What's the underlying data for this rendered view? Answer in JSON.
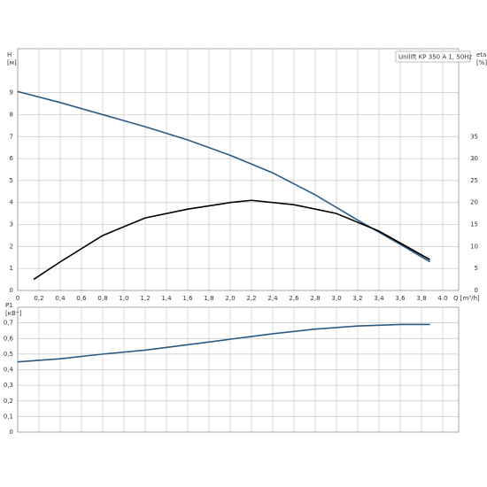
{
  "chart_data": [
    {
      "type": "line",
      "legend_title": "Unilift KP 350 A 1, 50Hz",
      "y_label": "H",
      "y_unit": "[м]",
      "y2_label": "eta",
      "y2_unit": "[%]",
      "x_label": "Q [m³/h]",
      "xlim": [
        0,
        4.15
      ],
      "xticks": [
        0,
        {
          "value": 0.2,
          "label": "0,2"
        },
        {
          "value": 0.4,
          "label": "0,4"
        },
        {
          "value": 0.6,
          "label": "0,6"
        },
        {
          "value": 0.8,
          "label": "0,8"
        },
        {
          "value": 1.0,
          "label": "1,0"
        },
        {
          "value": 1.2,
          "label": "1,2"
        },
        {
          "value": 1.4,
          "label": "1,4"
        },
        {
          "value": 1.6,
          "label": "1,6"
        },
        {
          "value": 1.8,
          "label": "1,8"
        },
        {
          "value": 2.0,
          "label": "2,0"
        },
        {
          "value": 2.2,
          "label": "2,2"
        },
        {
          "value": 2.4,
          "label": "2,4"
        },
        {
          "value": 2.6,
          "label": "2,6"
        },
        {
          "value": 2.8,
          "label": "2,8"
        },
        {
          "value": 3.0,
          "label": "3,0"
        },
        {
          "value": 3.2,
          "label": "3,2"
        },
        {
          "value": 3.4,
          "label": "3,4"
        },
        {
          "value": 3.6,
          "label": "3,6"
        },
        {
          "value": 3.8,
          "label": "3,8"
        },
        {
          "value": 4.0,
          "label": "4.0"
        }
      ],
      "ylim": [
        0,
        11
      ],
      "yticks": [
        0,
        1,
        2,
        3,
        4,
        5,
        6,
        7,
        8,
        9
      ],
      "y2lim": [
        0,
        55
      ],
      "y2ticks": [
        0,
        5,
        10,
        15,
        20,
        25,
        30,
        35
      ],
      "grid": true,
      "series": [
        {
          "name": "H",
          "color": "#2a5b86",
          "x": [
            0,
            0.4,
            0.8,
            1.2,
            1.6,
            2.0,
            2.4,
            2.8,
            3.2,
            3.6,
            3.88
          ],
          "values": [
            9.05,
            8.55,
            8.0,
            7.45,
            6.85,
            6.15,
            5.35,
            4.35,
            3.2,
            2.1,
            1.3
          ]
        },
        {
          "name": "eta",
          "color": "#000000",
          "axis": "y2",
          "x": [
            0.15,
            0.4,
            0.8,
            1.2,
            1.6,
            2.0,
            2.2,
            2.6,
            3.0,
            3.4,
            3.88
          ],
          "values": [
            2.5,
            6.5,
            12.5,
            16.5,
            18.5,
            20,
            20.5,
            19.5,
            17.5,
            13.5,
            7
          ]
        }
      ]
    },
    {
      "type": "line",
      "y_label": "P1",
      "y_unit": "[кВт]",
      "xlim": [
        0,
        4.15
      ],
      "ylim": [
        0,
        0.8
      ],
      "yticks": [
        0,
        {
          "value": 0.1,
          "label": "0,1"
        },
        {
          "value": 0.2,
          "label": "0,2"
        },
        {
          "value": 0.3,
          "label": "0,3"
        },
        {
          "value": 0.4,
          "label": "0,4"
        },
        {
          "value": 0.5,
          "label": "0,5"
        },
        {
          "value": 0.6,
          "label": "0,6"
        },
        {
          "value": 0.7,
          "label": "0,7"
        }
      ],
      "grid": true,
      "series": [
        {
          "name": "P1",
          "color": "#2a5b86",
          "x": [
            0,
            0.4,
            0.8,
            1.2,
            1.6,
            2.0,
            2.4,
            2.8,
            3.2,
            3.6,
            3.88
          ],
          "values": [
            0.45,
            0.47,
            0.5,
            0.525,
            0.56,
            0.595,
            0.63,
            0.66,
            0.68,
            0.69,
            0.69
          ]
        }
      ]
    }
  ]
}
